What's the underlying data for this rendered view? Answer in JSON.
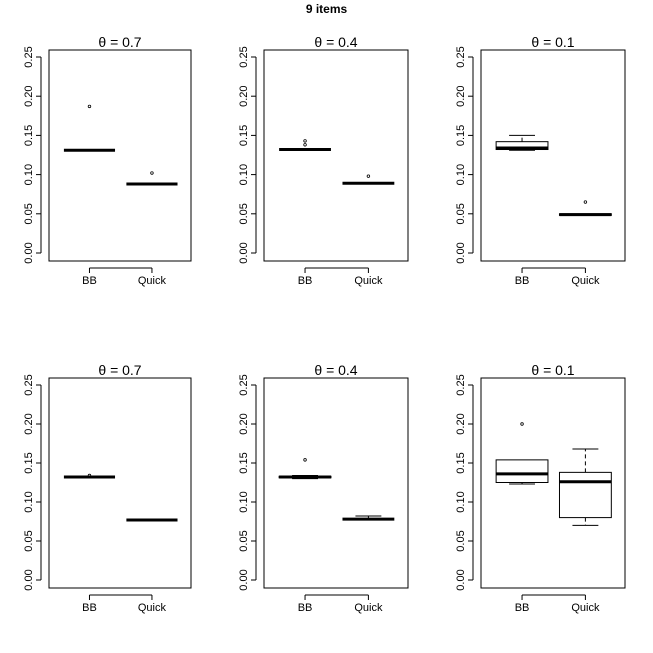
{
  "figure_title": "9 items",
  "chart_data": [
    {
      "type": "boxplot",
      "title": "θ = 0.7",
      "categories": [
        "BB",
        "Quick"
      ],
      "ylim": [
        0,
        0.26
      ],
      "yticks": [
        "0.00",
        "0.05",
        "0.10",
        "0.15",
        "0.20",
        "0.25"
      ],
      "boxes": [
        {
          "name": "BB",
          "whisker_low": 0.131,
          "q1": 0.131,
          "median": 0.131,
          "q3": 0.131,
          "whisker_high": 0.131,
          "outliers": [
            0.187
          ]
        },
        {
          "name": "Quick",
          "whisker_low": 0.088,
          "q1": 0.088,
          "median": 0.088,
          "q3": 0.088,
          "whisker_high": 0.088,
          "outliers": [
            0.102
          ]
        }
      ]
    },
    {
      "type": "boxplot",
      "title": "θ = 0.4",
      "categories": [
        "BB",
        "Quick"
      ],
      "ylim": [
        0,
        0.26
      ],
      "yticks": [
        "0.00",
        "0.05",
        "0.10",
        "0.15",
        "0.20",
        "0.25"
      ],
      "boxes": [
        {
          "name": "BB",
          "whisker_low": 0.132,
          "q1": 0.132,
          "median": 0.132,
          "q3": 0.132,
          "whisker_high": 0.132,
          "outliers": [
            0.138,
            0.143
          ]
        },
        {
          "name": "Quick",
          "whisker_low": 0.089,
          "q1": 0.089,
          "median": 0.089,
          "q3": 0.089,
          "whisker_high": 0.089,
          "outliers": [
            0.098
          ]
        }
      ]
    },
    {
      "type": "boxplot",
      "title": "θ = 0.1",
      "categories": [
        "BB",
        "Quick"
      ],
      "ylim": [
        0,
        0.26
      ],
      "yticks": [
        "0.00",
        "0.05",
        "0.10",
        "0.15",
        "0.20",
        "0.25"
      ],
      "boxes": [
        {
          "name": "BB",
          "whisker_low": 0.131,
          "q1": 0.132,
          "median": 0.134,
          "q3": 0.142,
          "whisker_high": 0.15,
          "outliers": []
        },
        {
          "name": "Quick",
          "whisker_low": 0.048,
          "q1": 0.048,
          "median": 0.049,
          "q3": 0.05,
          "whisker_high": 0.05,
          "outliers": [
            0.065
          ]
        }
      ]
    },
    {
      "type": "boxplot",
      "title": "θ = 0.7",
      "categories": [
        "BB",
        "Quick"
      ],
      "ylim": [
        0,
        0.26
      ],
      "yticks": [
        "0.00",
        "0.05",
        "0.10",
        "0.15",
        "0.20",
        "0.25"
      ],
      "boxes": [
        {
          "name": "BB",
          "whisker_low": 0.132,
          "q1": 0.132,
          "median": 0.132,
          "q3": 0.132,
          "whisker_high": 0.132,
          "outliers": [
            0.134
          ]
        },
        {
          "name": "Quick",
          "whisker_low": 0.077,
          "q1": 0.077,
          "median": 0.077,
          "q3": 0.077,
          "whisker_high": 0.077,
          "outliers": []
        }
      ]
    },
    {
      "type": "boxplot",
      "title": "θ = 0.4",
      "categories": [
        "BB",
        "Quick"
      ],
      "ylim": [
        0,
        0.26
      ],
      "yticks": [
        "0.00",
        "0.05",
        "0.10",
        "0.15",
        "0.20",
        "0.25"
      ],
      "boxes": [
        {
          "name": "BB",
          "whisker_low": 0.13,
          "q1": 0.131,
          "median": 0.132,
          "q3": 0.133,
          "whisker_high": 0.134,
          "outliers": [
            0.154
          ]
        },
        {
          "name": "Quick",
          "whisker_low": 0.077,
          "q1": 0.078,
          "median": 0.078,
          "q3": 0.079,
          "whisker_high": 0.082,
          "outliers": []
        }
      ]
    },
    {
      "type": "boxplot",
      "title": "θ = 0.1",
      "categories": [
        "BB",
        "Quick"
      ],
      "ylim": [
        0,
        0.26
      ],
      "yticks": [
        "0.00",
        "0.05",
        "0.10",
        "0.15",
        "0.20",
        "0.25"
      ],
      "boxes": [
        {
          "name": "BB",
          "whisker_low": 0.123,
          "q1": 0.125,
          "median": 0.136,
          "q3": 0.154,
          "whisker_high": 0.154,
          "outliers": [
            0.2
          ]
        },
        {
          "name": "Quick",
          "whisker_low": 0.07,
          "q1": 0.08,
          "median": 0.126,
          "q3": 0.138,
          "whisker_high": 0.168,
          "outliers": []
        }
      ]
    }
  ]
}
